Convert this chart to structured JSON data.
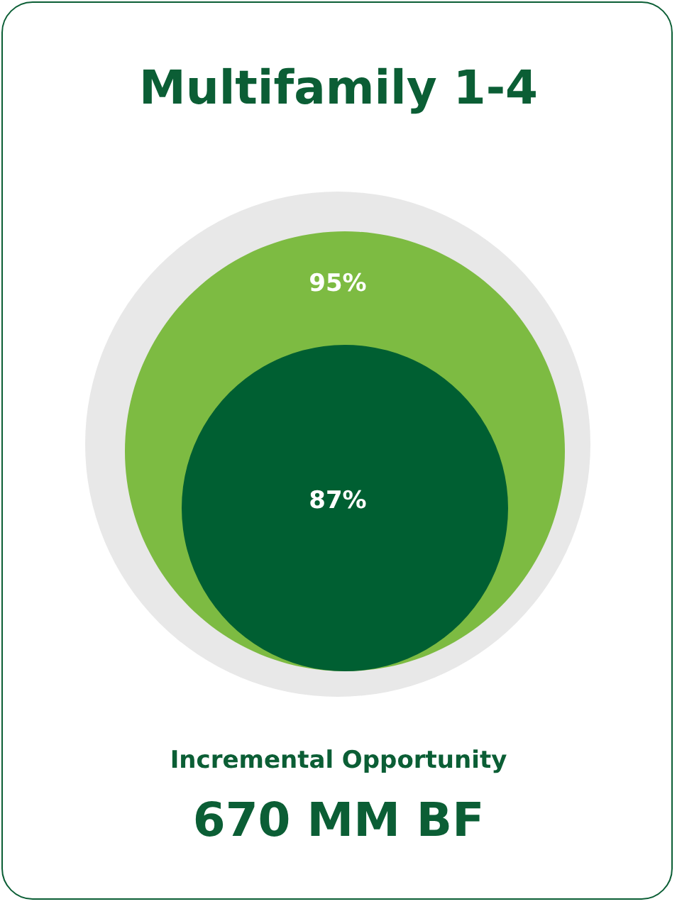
{
  "chart_data": {
    "type": "other",
    "title": "Multifamily 1-4",
    "categories": [
      null,
      null
    ],
    "values": [
      95,
      87
    ],
    "value_labels": [
      "95%",
      "87%"
    ],
    "colors": [
      "#7dbb42",
      "#005f32"
    ],
    "annotations": [
      "Incremental Opportunity",
      "670 MM BF"
    ]
  }
}
